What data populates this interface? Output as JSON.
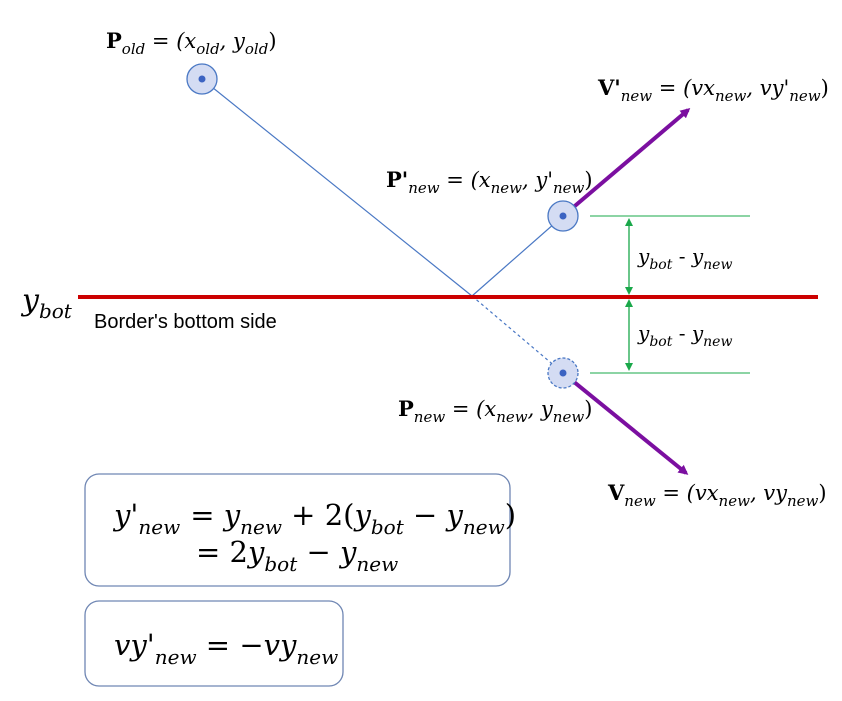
{
  "border": {
    "label": "Border's bottom side",
    "y_symbol": "y",
    "y_sub": "bot"
  },
  "points": {
    "p_old": {
      "name": "P",
      "sub": "old",
      "formula": "(x",
      "f_sub1": "old",
      "mid": ", y",
      "f_sub2": "old",
      "end": ")"
    },
    "p_new_reflected": {
      "name": "P'",
      "sub": "new",
      "formula": "(x",
      "f_sub1": "new",
      "mid": ", y'",
      "f_sub2": "new",
      "end": ")"
    },
    "p_new": {
      "name": "P",
      "sub": "new",
      "formula": "(x",
      "f_sub1": "new",
      "mid": ", y",
      "f_sub2": "new",
      "end": ")"
    }
  },
  "vectors": {
    "v_new_reflected": {
      "name": "V'",
      "sub": "new",
      "formula": "(vx",
      "f_sub1": "new",
      "mid": ", vy'",
      "f_sub2": "new",
      "end": ")"
    },
    "v_new": {
      "name": "V",
      "sub": "new",
      "formula": "(vx",
      "f_sub1": "new",
      "mid": ", vy",
      "f_sub2": "new",
      "end": ")"
    }
  },
  "distances": {
    "upper": {
      "a": "y",
      "a_sub": "bot",
      "op": " - ",
      "b": "y",
      "b_sub": "new"
    },
    "lower": {
      "a": "y",
      "a_sub": "bot",
      "op": " - ",
      "b": "y",
      "b_sub": "new"
    }
  },
  "equations": {
    "box1_line1": {
      "lhs": "y'",
      "lhs_sub": "new",
      "eq": "= ",
      "t1": "y",
      "t1_sub": "new",
      "plus": " + 2(",
      "t2": "y",
      "t2_sub": "bot",
      "minus": " − ",
      "t3": "y",
      "t3_sub": "new",
      "close": ")"
    },
    "box1_line2": {
      "eq": "= 2",
      "t1": "y",
      "t1_sub": "bot",
      "minus": " − ",
      "t2": "y",
      "t2_sub": "new"
    },
    "box2": {
      "lhs": "vy'",
      "lhs_sub": "new",
      "eq": " = −",
      "t1": "vy",
      "t1_sub": "new"
    }
  },
  "colors": {
    "border_line": "#cc0000",
    "vector": "#7b0fa0",
    "path": "#4a78c4",
    "dimension": "#1aa84a",
    "box_stroke": "#6f86b3",
    "point_fill": "#d4dcf3"
  }
}
